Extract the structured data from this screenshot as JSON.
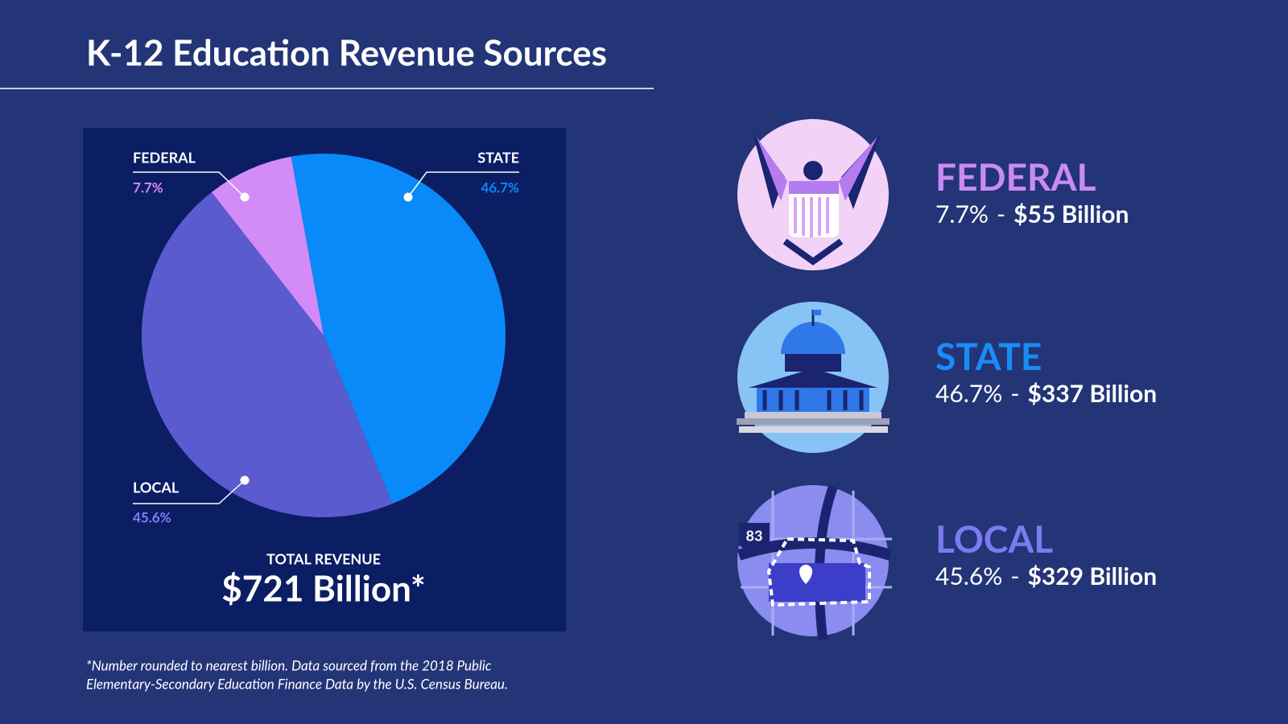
{
  "chart_data": {
    "type": "pie",
    "title": "K-12 Education Revenue Sources",
    "categories": [
      "FEDERAL",
      "STATE",
      "LOCAL"
    ],
    "values": [
      7.7,
      46.7,
      45.6
    ],
    "value_labels": [
      "7.7%",
      "46.7%",
      "45.6%"
    ],
    "colors": [
      "#d38cf7",
      "#0a8af8",
      "#5b5bd0"
    ],
    "amounts": [
      "$55 Billion",
      "$337 Billion",
      "$329 Billion"
    ],
    "separator": "-",
    "total_label": "TOTAL REVENUE",
    "total_value": "$721 Billion*",
    "footnote": [
      "*Number rounded to nearest billion. Data sourced from the 2018 Public",
      "Elementary-Secondary Education Finance Data by the U.S. Census Bureau."
    ]
  }
}
